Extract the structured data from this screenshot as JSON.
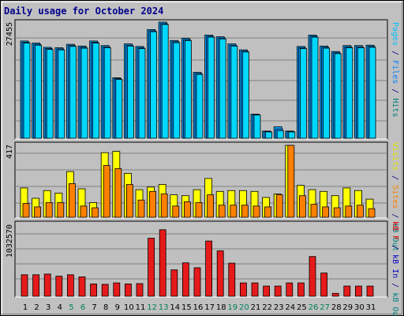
{
  "title": "Daily usage for October 2024",
  "colors": {
    "hits": "#00a5ff",
    "files": "#008eff",
    "pages": "#00d7ff",
    "visits": "#ffff00",
    "sites": "#ff8000",
    "kb_in": "#008080",
    "kb_out": "#009980",
    "kb_f": "#e61a1a",
    "weekend_label": "#00805c",
    "day_label": "#000000",
    "panel_bg": "#c0c0c0"
  },
  "legends": {
    "top": [
      {
        "text": "Pages",
        "color": "#00c0ff"
      },
      {
        "text": " / ",
        "color": "#000080"
      },
      {
        "text": "Files",
        "color": "#0080ff"
      },
      {
        "text": " / ",
        "color": "#000080"
      },
      {
        "text": "Hits",
        "color": "#008080"
      }
    ],
    "middle": [
      {
        "text": "Visits",
        "color": "#e6e600"
      },
      {
        "text": " / ",
        "color": "#000080"
      },
      {
        "text": "Sites",
        "color": "#ff8000"
      },
      {
        "text": " / ",
        "color": "#000080"
      },
      {
        "text": "kB Out",
        "color": "#008080"
      }
    ],
    "bottom": [
      {
        "text": "kB F",
        "color": "#e60000"
      },
      {
        "text": " / ",
        "color": "#000080"
      },
      {
        "text": "kB In",
        "color": "#0000c0"
      },
      {
        "text": " / ",
        "color": "#000080"
      },
      {
        "text": "kB Out",
        "color": "#008080"
      }
    ]
  },
  "chart_data": [
    {
      "type": "bar",
      "panel": "hits-files-pages",
      "ymax_label": "27455",
      "ymax": 27455,
      "categories": [
        "1",
        "2",
        "3",
        "4",
        "5",
        "6",
        "7",
        "8",
        "9",
        "10",
        "11",
        "12",
        "13",
        "14",
        "15",
        "16",
        "17",
        "18",
        "19",
        "20",
        "21",
        "22",
        "23",
        "24",
        "25",
        "26",
        "27",
        "28",
        "29",
        "30",
        "31"
      ],
      "weekend_days": [
        5,
        6,
        12,
        13,
        19,
        20,
        26,
        27
      ],
      "series": [
        {
          "name": "Hits",
          "values": [
            23000,
            22500,
            21500,
            21400,
            22200,
            21800,
            23000,
            21900,
            14300,
            22300,
            21700,
            25700,
            27455,
            23100,
            23600,
            15600,
            24400,
            24000,
            22300,
            20900,
            5700,
            1700,
            2700,
            1700,
            21700,
            24400,
            21800,
            20500,
            21900,
            21900,
            22000
          ]
        },
        {
          "name": "Files",
          "values": [
            22700,
            22200,
            21200,
            21100,
            21900,
            21500,
            22700,
            21600,
            14100,
            22000,
            21400,
            25400,
            27100,
            22800,
            23300,
            15300,
            24100,
            23700,
            22000,
            20600,
            5600,
            1600,
            2200,
            1600,
            21400,
            24100,
            21500,
            20200,
            21600,
            21600,
            21700
          ]
        },
        {
          "name": "Pages",
          "values": [
            22500,
            22000,
            21000,
            20900,
            21700,
            21300,
            22500,
            21400,
            13900,
            21800,
            21200,
            25200,
            26900,
            22600,
            23100,
            15100,
            23900,
            23500,
            21800,
            20400,
            5500,
            1500,
            1800,
            1500,
            21200,
            23900,
            21300,
            20000,
            21400,
            21400,
            21500
          ]
        }
      ]
    },
    {
      "type": "bar",
      "panel": "visits-sites",
      "ymax_label": "417",
      "ymax": 417,
      "categories": [
        "1",
        "2",
        "3",
        "4",
        "5",
        "6",
        "7",
        "8",
        "9",
        "10",
        "11",
        "12",
        "13",
        "14",
        "15",
        "16",
        "17",
        "18",
        "19",
        "20",
        "21",
        "22",
        "23",
        "24",
        "25",
        "26",
        "27",
        "28",
        "29",
        "30",
        "31"
      ],
      "series": [
        {
          "name": "Visits",
          "values": [
            170,
            110,
            155,
            140,
            265,
            165,
            85,
            375,
            382,
            255,
            160,
            175,
            190,
            130,
            125,
            160,
            225,
            150,
            155,
            155,
            150,
            115,
            135,
            417,
            185,
            160,
            150,
            125,
            170,
            155,
            105
          ]
        },
        {
          "name": "Sites",
          "values": [
            80,
            60,
            85,
            85,
            195,
            65,
            55,
            300,
            282,
            190,
            100,
            150,
            135,
            65,
            90,
            85,
            130,
            70,
            70,
            70,
            65,
            60,
            130,
            417,
            125,
            75,
            60,
            55,
            65,
            70,
            50
          ]
        }
      ]
    },
    {
      "type": "bar",
      "panel": "kbytes",
      "ymax_label": "1032570",
      "ymax": 1032570,
      "categories": [
        "1",
        "2",
        "3",
        "4",
        "5",
        "6",
        "7",
        "8",
        "9",
        "10",
        "11",
        "12",
        "13",
        "14",
        "15",
        "16",
        "17",
        "18",
        "19",
        "20",
        "21",
        "22",
        "23",
        "24",
        "25",
        "26",
        "27",
        "28",
        "29",
        "30",
        "31"
      ],
      "series": [
        {
          "name": "kB F",
          "values": [
            305000,
            305000,
            315000,
            285000,
            305000,
            275000,
            175000,
            170000,
            190000,
            175000,
            180000,
            825000,
            945000,
            375000,
            475000,
            405000,
            785000,
            645000,
            470000,
            190000,
            190000,
            145000,
            145000,
            190000,
            190000,
            565000,
            330000,
            42000,
            145000,
            145000,
            145000
          ]
        }
      ]
    }
  ]
}
